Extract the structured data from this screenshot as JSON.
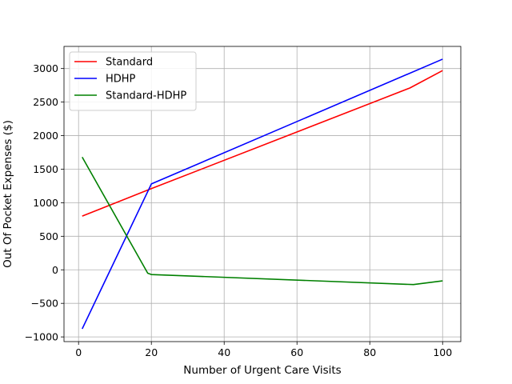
{
  "chart_data": {
    "type": "line",
    "title": "",
    "xlabel": "Number of Urgent Care Visits",
    "ylabel": "Out Of Pocket Expenses ($)",
    "xlim": [
      -4,
      105
    ],
    "ylim": [
      -1070,
      3330
    ],
    "xticks": [
      0,
      20,
      40,
      60,
      80,
      100
    ],
    "yticks": [
      -1000,
      -500,
      0,
      500,
      1000,
      1500,
      2000,
      2500,
      3000
    ],
    "grid": true,
    "legend": "top-left",
    "series": [
      {
        "name": "Standard",
        "color": "#ff0000",
        "points": [
          [
            1,
            800
          ],
          [
            20,
            1210
          ],
          [
            91,
            2710
          ],
          [
            100,
            2970
          ]
        ]
      },
      {
        "name": "HDHP",
        "color": "#0000ff",
        "points": [
          [
            1,
            -880
          ],
          [
            20,
            1280
          ],
          [
            100,
            3140
          ]
        ]
      },
      {
        "name": "Standard-HDHP",
        "color": "#008000",
        "points": [
          [
            1,
            1680
          ],
          [
            19,
            -50
          ],
          [
            20,
            -70
          ],
          [
            92,
            -220
          ],
          [
            100,
            -165
          ]
        ]
      }
    ]
  }
}
